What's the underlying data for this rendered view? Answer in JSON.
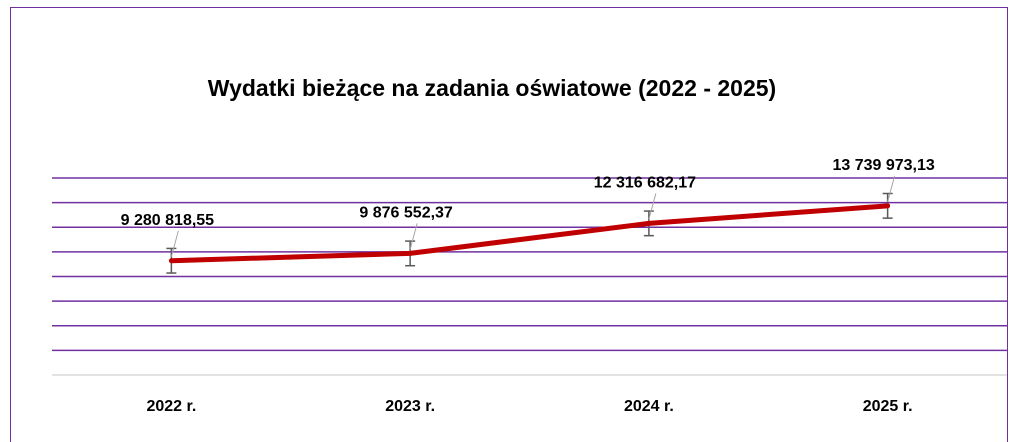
{
  "chart_data": {
    "type": "line",
    "title": "Wydatki bieżące na zadania oświatowe (2022 - 2025)",
    "categories": [
      "2022 r.",
      "2023 r.",
      "2024 r.",
      "2025 r."
    ],
    "series": [
      {
        "name": "Wydatki bieżące",
        "color": "#c00000",
        "values": [
          9280818.55,
          9876552.37,
          12316682.17,
          13739973.13
        ],
        "value_labels": [
          "9 280 818,55",
          "9 876 552,37",
          "12 316 682,17",
          "13 739 973,13"
        ],
        "errors": [
          1000000,
          1000000,
          1000000,
          1000000
        ]
      }
    ],
    "ylim": [
      0,
      16000000
    ],
    "yticks": [
      0,
      2000000,
      4000000,
      6000000,
      8000000,
      10000000,
      12000000,
      14000000,
      16000000
    ],
    "grid": true,
    "grid_color": "#7030a0"
  }
}
